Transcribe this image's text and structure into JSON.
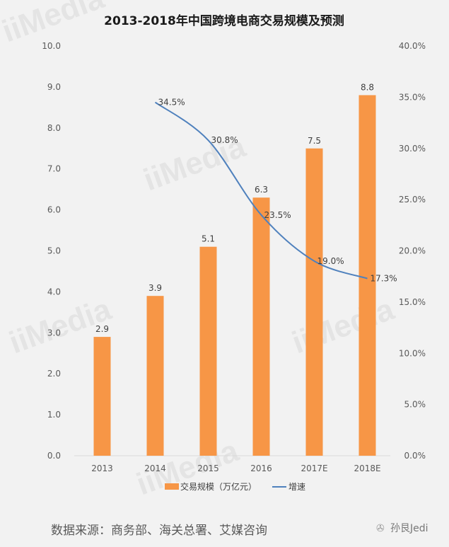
{
  "chart_data": {
    "type": "bar+line",
    "title": "2013-2018年中国跨境电商交易规模及预测",
    "categories": [
      "2013",
      "2014",
      "2015",
      "2016",
      "2017E",
      "2018E"
    ],
    "series": [
      {
        "name": "交易规模（万亿元）",
        "type": "bar",
        "axis": "left",
        "color": "#f79646",
        "values": [
          2.9,
          3.9,
          5.1,
          6.3,
          7.5,
          8.8
        ],
        "labels": [
          "2.9",
          "3.9",
          "5.1",
          "6.3",
          "7.5",
          "8.8"
        ]
      },
      {
        "name": "增速",
        "type": "line",
        "axis": "right",
        "color": "#4f81bd",
        "values": [
          null,
          34.5,
          30.8,
          23.5,
          19.0,
          17.3
        ],
        "labels": [
          "",
          "34.5%",
          "30.8%",
          "23.5%",
          "19.0%",
          "17.3%"
        ]
      }
    ],
    "y_left": {
      "range": [
        0,
        10
      ],
      "ticks": [
        "0.0",
        "1.0",
        "2.0",
        "3.0",
        "4.0",
        "5.0",
        "6.0",
        "7.0",
        "8.0",
        "9.0",
        "10.0"
      ]
    },
    "y_right": {
      "range": [
        0,
        40
      ],
      "ticks": [
        "0.0%",
        "5.0%",
        "10.0%",
        "15.0%",
        "20.0%",
        "25.0%",
        "30.0%",
        "35.0%",
        "40.0%"
      ]
    },
    "grid": false,
    "legend_placement": "bottom"
  },
  "footer": {
    "source": "数据来源：商务部、海关总署、艾媒咨询",
    "brand": "孙艮Jedi"
  },
  "watermark": "iiMedia"
}
